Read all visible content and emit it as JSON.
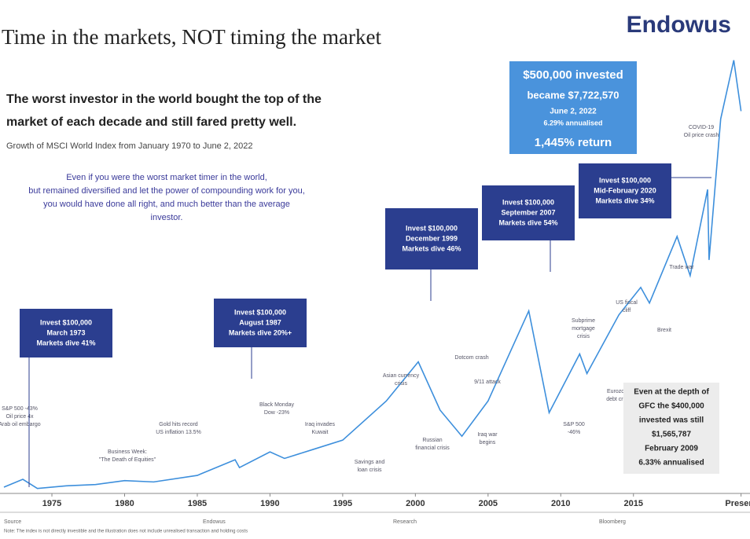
{
  "brand": "Endowus",
  "chart_data": {
    "type": "line",
    "title": "Time in the markets, NOT timing the market",
    "subtitle": [
      "The worst investor in the world bought the top of the",
      "market of each decade and still fared pretty well."
    ],
    "caption": "Growth of MSCI World Index from January 1970 to June 2, 2022",
    "intro": [
      "Even if you were the worst market timer in the world,",
      "but remained diversified and let the power of compounding work for you,",
      "you would have done all right, and much better than the average",
      "investor."
    ],
    "x": [
      1971.7,
      1973,
      1974,
      1976,
      1978,
      1980,
      1982,
      1985,
      1987.6,
      1987.9,
      1990,
      1991,
      1993,
      1995,
      1998,
      2000.2,
      2001.7,
      2003.2,
      2005,
      2007.8,
      2009.2,
      2011.3,
      2011.8,
      2014,
      2015.5,
      2016.1,
      2018,
      2018.9,
      2020.1,
      2020.2,
      2021,
      2021.9,
      2022.4
    ],
    "series": [
      {
        "color": "#3d8fdc",
        "values": [
          30,
          90,
          20,
          40,
          50,
          80,
          70,
          120,
          240,
          180,
          300,
          250,
          320,
          390,
          690,
          990,
          620,
          420,
          690,
          1380,
          600,
          1050,
          900,
          1350,
          1560,
          1440,
          1950,
          1650,
          2310,
          1770,
          2850,
          3300,
          2910
        ]
      }
    ],
    "xlim": [
      1971.7,
      2022.8
    ],
    "ylim": [
      0,
      3400
    ],
    "xticks": [
      1975,
      1980,
      1985,
      1990,
      1995,
      2000,
      2005,
      2010,
      2015,
      {
        "value": 2022.4,
        "label": "Present"
      }
    ],
    "boxes": [
      [
        "Invest $100,000",
        "March 1973",
        "Markets dive 41%"
      ],
      [
        "Invest $100,000",
        "August 1987",
        "Markets dive 20%+"
      ],
      [
        "Invest $100,000",
        "December 1999",
        "Markets dive 46%"
      ],
      [
        "Invest $100,000",
        "September 2007",
        "Markets dive 54%"
      ],
      [
        "Invest $100,000",
        "Mid-February 2020",
        "Markets dive 34%"
      ]
    ],
    "result_box": [
      "$500,000 invested",
      "became $7,722,570",
      "June 2, 2022",
      "6.29% annualised",
      "1,445% return"
    ],
    "gfc_box": [
      "Even at the depth of",
      "GFC the $400,000",
      "invested was still",
      "$1,565,787",
      "February 2009",
      "6.33% annualised"
    ],
    "events": [
      [
        "S&P 500 -43%",
        "Oil price 4x",
        "Arab oil embargo"
      ],
      [
        "Business Week:",
        "\"The Death of Equities\""
      ],
      [
        "Gold hits record",
        "US inflation 13.5%"
      ],
      [
        "Black Monday",
        "Dow -23%"
      ],
      [
        "Iraq invades",
        "Kuwait"
      ],
      [
        "Savings and",
        "loan crisis"
      ],
      [
        "Asian currency",
        "crisis"
      ],
      [
        "Russian",
        "financial crisis"
      ],
      [
        "Dotcom crash"
      ],
      [
        "9/11 attack"
      ],
      [
        "Iraq war",
        "begins"
      ],
      [
        "Subprime",
        "mortgage",
        "crisis"
      ],
      [
        "S&P 500",
        "-46%"
      ],
      [
        "US fiscal",
        "cliff"
      ],
      [
        "Eurozone",
        "debt crisis"
      ],
      [
        "Brexit"
      ],
      [
        "Trade war"
      ],
      [
        "COVID-19",
        "Oil price crash"
      ]
    ]
  },
  "footer": {
    "sources": [
      "Source",
      "Endowus",
      "Research",
      "Bloomberg"
    ],
    "note": "Note: The index is not directly investible and the illustration does not include unrealised transaction and holding costs"
  }
}
